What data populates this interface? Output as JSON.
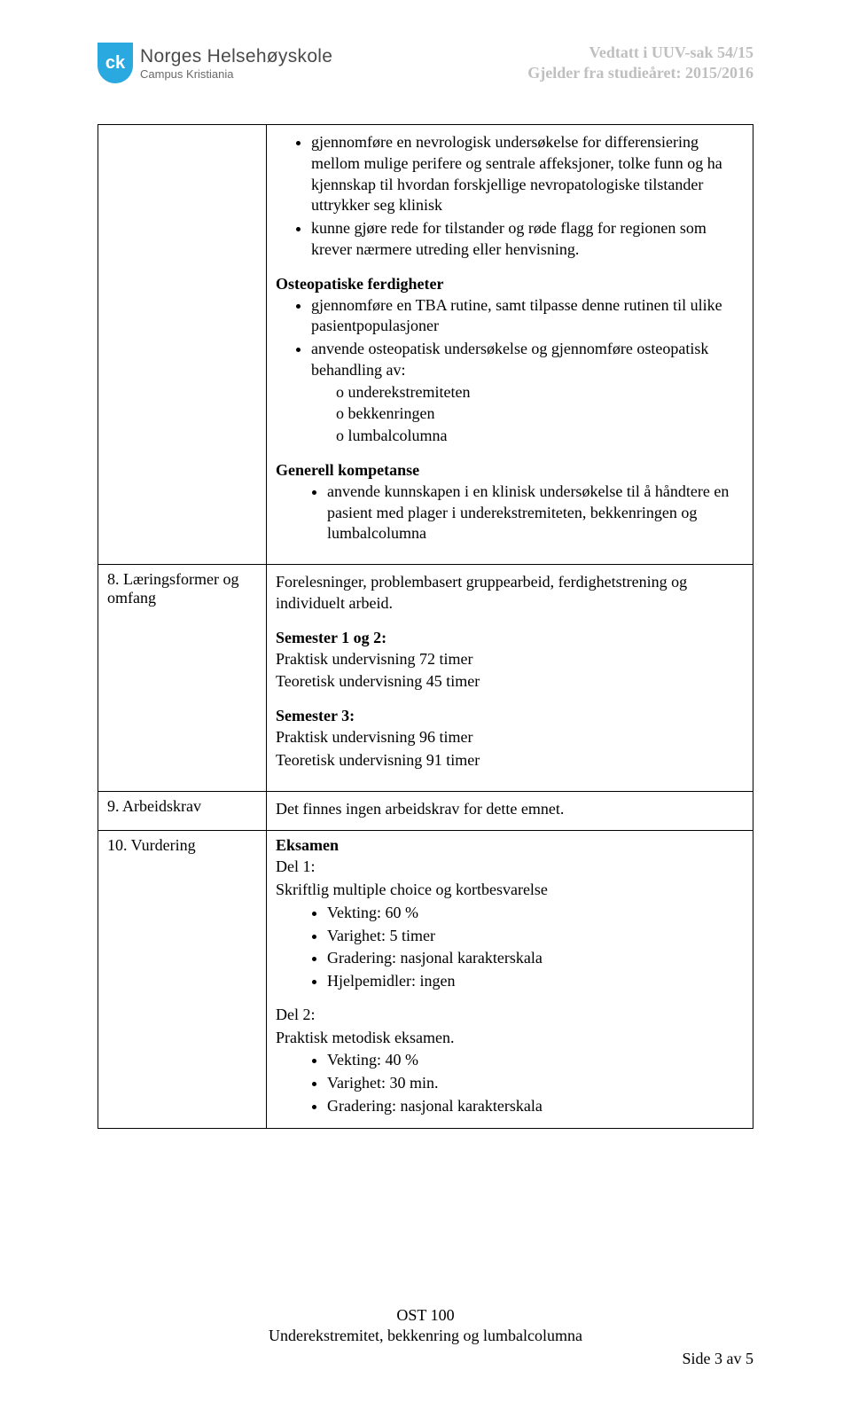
{
  "header": {
    "logo_mark": "ck",
    "logo_main": "Norges Helsehøyskole",
    "logo_sub": "Campus Kristiania",
    "right_line1": "Vedtatt i UUV-sak 54/15",
    "right_line2": "Gjelder fra studieåret: 2015/2016"
  },
  "cell_intro": {
    "bullet1": "gjennomføre en nevrologisk undersøkelse for differensiering mellom mulige perifere og sentrale affeksjoner, tolke funn og ha kjennskap til hvordan forskjellige nevropatologiske tilstander uttrykker seg klinisk",
    "bullet2": "kunne gjøre rede for tilstander og røde flagg for regionen som krever nærmere utreding eller henvisning.",
    "osteo_heading": "Osteopatiske ferdigheter",
    "osteo_b1": "gjennomføre en TBA rutine, samt tilpasse denne rutinen til ulike pasientpopulasjoner",
    "osteo_b2": "anvende osteopatisk undersøkelse og gjennomføre osteopatisk behandling av:",
    "osteo_sub1": "underekstremiteten",
    "osteo_sub2": "bekkenringen",
    "osteo_sub3": "lumbalcolumna",
    "gen_heading": "Generell kompetanse",
    "gen_b1": "anvende kunnskapen i en klinisk undersøkelse til å håndtere en pasient med plager i underekstremiteten, bekkenringen og lumbalcolumna"
  },
  "row8": {
    "label": "8. Læringsformer og omfang",
    "intro": "Forelesninger, problembasert gruppearbeid, ferdighetstrening og individuelt arbeid.",
    "s12_h": "Semester 1 og 2:",
    "s12_l1": "Praktisk undervisning 72 timer",
    "s12_l2": "Teoretisk undervisning 45 timer",
    "s3_h": "Semester 3:",
    "s3_l1": "Praktisk undervisning 96 timer",
    "s3_l2": "Teoretisk undervisning 91 timer"
  },
  "row9": {
    "label": "9. Arbeidskrav",
    "text": "Det finnes ingen arbeidskrav for dette emnet."
  },
  "row10": {
    "label": "10. Vurdering",
    "eksamen": "Eksamen",
    "del1": "Del 1:",
    "del1_line": "Skriftlig multiple choice og kortbesvarelse",
    "d1_b1": "Vekting: 60 %",
    "d1_b2": "Varighet: 5 timer",
    "d1_b3": "Gradering: nasjonal karakterskala",
    "d1_b4": "Hjelpemidler: ingen",
    "del2": "Del 2:",
    "del2_line": "Praktisk metodisk eksamen.",
    "d2_b1": "Vekting: 40 %",
    "d2_b2": "Varighet: 30 min.",
    "d2_b3": "Gradering: nasjonal karakterskala"
  },
  "footer": {
    "line1": "OST 100",
    "line2": "Underekstremitet, bekkenring og lumbalcolumna",
    "page": "Side 3 av 5"
  },
  "colors": {
    "logo_bg": "#2aa9e0",
    "header_gray": "#bfbfbf",
    "text": "#000000",
    "border": "#000000"
  },
  "typography": {
    "body_family": "Times New Roman",
    "body_size_pt": 12,
    "logo_family": "Arial"
  }
}
